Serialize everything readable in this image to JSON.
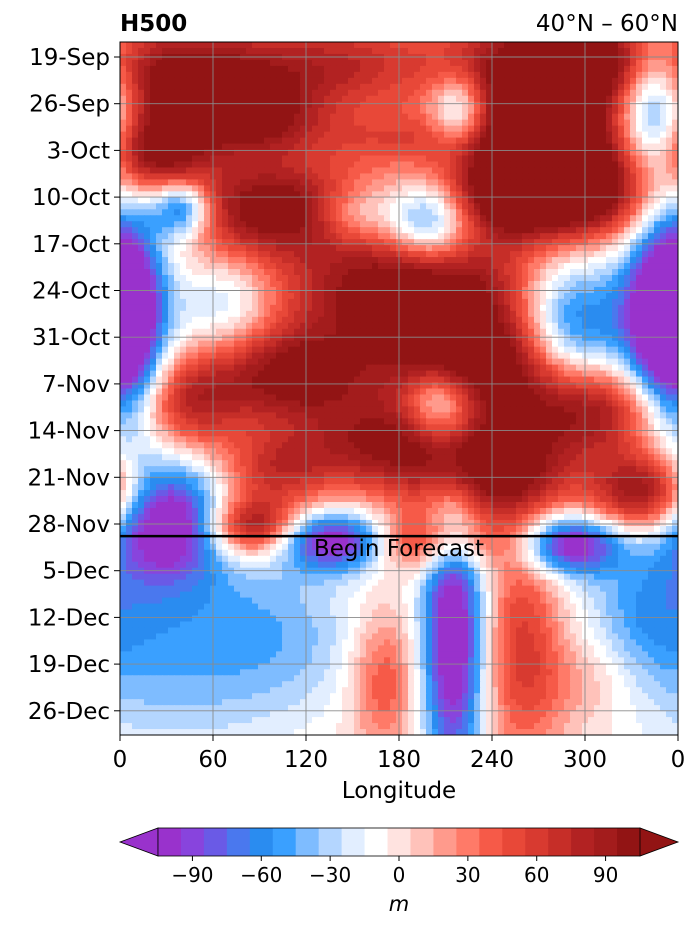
{
  "chart_data": {
    "type": "heatmap",
    "title_left": "H500",
    "title_right": "40°N – 60°N",
    "xlabel": "Longitude",
    "x_ticks": [
      "0",
      "60",
      "120",
      "180",
      "240",
      "300",
      "0"
    ],
    "y_ticks": [
      "19-Sep",
      "26-Sep",
      "3-Oct",
      "10-Oct",
      "17-Oct",
      "24-Oct",
      "31-Oct",
      "7-Nov",
      "14-Nov",
      "21-Nov",
      "28-Nov",
      "5-Dec",
      "12-Dec",
      "19-Dec",
      "26-Dec"
    ],
    "grid": true,
    "annotation": "Begin Forecast",
    "forecast_start_fraction": 0.713,
    "colorbar": {
      "label": "m",
      "ticks": [
        "−90",
        "−60",
        "−30",
        "0",
        "30",
        "60",
        "90"
      ],
      "range": [
        -105,
        105
      ],
      "step": 10,
      "colors": [
        "#9932cc",
        "#8844dd",
        "#6a5ae6",
        "#4a78ee",
        "#2a8cf0",
        "#3aa0ff",
        "#7ebcff",
        "#b4d6ff",
        "#e2eeff",
        "#ffffff",
        "#ffe3e0",
        "#ffc2ba",
        "#ff9a8c",
        "#ff7a68",
        "#f65a48",
        "#e84838",
        "#d83a30",
        "#c62e28",
        "#b22222",
        "#a31c1c",
        "#921414"
      ],
      "neg_extend_color": "#9932cc",
      "pos_extend_color": "#921414"
    },
    "blobs": [
      {
        "x": 40,
        "y": 0.05,
        "rx": 55,
        "ry": 0.06,
        "v": 110
      },
      {
        "x": 150,
        "y": 0.03,
        "rx": 40,
        "ry": 0.05,
        "v": 60
      },
      {
        "x": 250,
        "y": 0.05,
        "rx": 35,
        "ry": 0.07,
        "v": 90
      },
      {
        "x": 300,
        "y": 0.02,
        "rx": 25,
        "ry": 0.04,
        "v": 100
      },
      {
        "x": 345,
        "y": 0.1,
        "rx": 18,
        "ry": 0.07,
        "v": -110
      },
      {
        "x": 220,
        "y": 0.1,
        "rx": 15,
        "ry": 0.04,
        "v": -90
      },
      {
        "x": 85,
        "y": 0.11,
        "rx": 30,
        "ry": 0.04,
        "v": 70
      },
      {
        "x": 20,
        "y": 0.16,
        "rx": 25,
        "ry": 0.04,
        "v": 100
      },
      {
        "x": 180,
        "y": 0.14,
        "rx": 45,
        "ry": 0.03,
        "v": 40
      },
      {
        "x": 280,
        "y": 0.13,
        "rx": 35,
        "ry": 0.06,
        "v": 110
      },
      {
        "x": 40,
        "y": 0.24,
        "rx": 14,
        "ry": 0.03,
        "v": -100
      },
      {
        "x": 100,
        "y": 0.24,
        "rx": 45,
        "ry": 0.05,
        "v": 110
      },
      {
        "x": 200,
        "y": 0.26,
        "rx": 20,
        "ry": 0.04,
        "v": -90
      },
      {
        "x": 245,
        "y": 0.22,
        "rx": 30,
        "ry": 0.05,
        "v": 90
      },
      {
        "x": 300,
        "y": 0.22,
        "rx": 35,
        "ry": 0.05,
        "v": 110
      },
      {
        "x": 150,
        "y": 0.25,
        "rx": 18,
        "ry": 0.03,
        "v": -50
      },
      {
        "x": 5,
        "y": 0.4,
        "rx": 18,
        "ry": 0.12,
        "v": -100
      },
      {
        "x": 190,
        "y": 0.36,
        "rx": 60,
        "ry": 0.06,
        "v": 120
      },
      {
        "x": 290,
        "y": 0.42,
        "rx": 25,
        "ry": 0.08,
        "v": -100
      },
      {
        "x": 350,
        "y": 0.4,
        "rx": 20,
        "ry": 0.1,
        "v": -120
      },
      {
        "x": 70,
        "y": 0.38,
        "rx": 22,
        "ry": 0.05,
        "v": -40
      },
      {
        "x": 110,
        "y": 0.48,
        "rx": 35,
        "ry": 0.05,
        "v": 100
      },
      {
        "x": 230,
        "y": 0.46,
        "rx": 45,
        "ry": 0.05,
        "v": 110
      },
      {
        "x": 300,
        "y": 0.53,
        "rx": 40,
        "ry": 0.05,
        "v": 110
      },
      {
        "x": 45,
        "y": 0.52,
        "rx": 25,
        "ry": 0.05,
        "v": 70
      },
      {
        "x": 205,
        "y": 0.52,
        "rx": 15,
        "ry": 0.04,
        "v": -70
      },
      {
        "x": 170,
        "y": 0.58,
        "rx": 40,
        "ry": 0.05,
        "v": 90
      },
      {
        "x": 240,
        "y": 0.62,
        "rx": 35,
        "ry": 0.05,
        "v": 110
      },
      {
        "x": 340,
        "y": 0.65,
        "rx": 25,
        "ry": 0.04,
        "v": 110
      },
      {
        "x": 100,
        "y": 0.62,
        "rx": 25,
        "ry": 0.04,
        "v": 60
      },
      {
        "x": 30,
        "y": 0.69,
        "rx": 25,
        "ry": 0.06,
        "v": -110
      },
      {
        "x": 85,
        "y": 0.7,
        "rx": 20,
        "ry": 0.03,
        "v": 100
      },
      {
        "x": 140,
        "y": 0.72,
        "rx": 25,
        "ry": 0.03,
        "v": -110
      },
      {
        "x": 200,
        "y": 0.72,
        "rx": 30,
        "ry": 0.03,
        "v": 70
      },
      {
        "x": 290,
        "y": 0.725,
        "rx": 22,
        "ry": 0.03,
        "v": -110
      },
      {
        "x": 30,
        "y": 0.86,
        "rx": 60,
        "ry": 0.12,
        "v": -45
      },
      {
        "x": 215,
        "y": 0.86,
        "rx": 14,
        "ry": 0.15,
        "v": -120
      },
      {
        "x": 260,
        "y": 0.87,
        "rx": 18,
        "ry": 0.12,
        "v": 60
      },
      {
        "x": 170,
        "y": 0.92,
        "rx": 15,
        "ry": 0.07,
        "v": 50
      },
      {
        "x": 110,
        "y": 0.86,
        "rx": 40,
        "ry": 0.08,
        "v": -25
      },
      {
        "x": 340,
        "y": 0.82,
        "rx": 25,
        "ry": 0.07,
        "v": -30
      },
      {
        "x": 300,
        "y": 0.92,
        "rx": 25,
        "ry": 0.05,
        "v": 25
      }
    ]
  }
}
